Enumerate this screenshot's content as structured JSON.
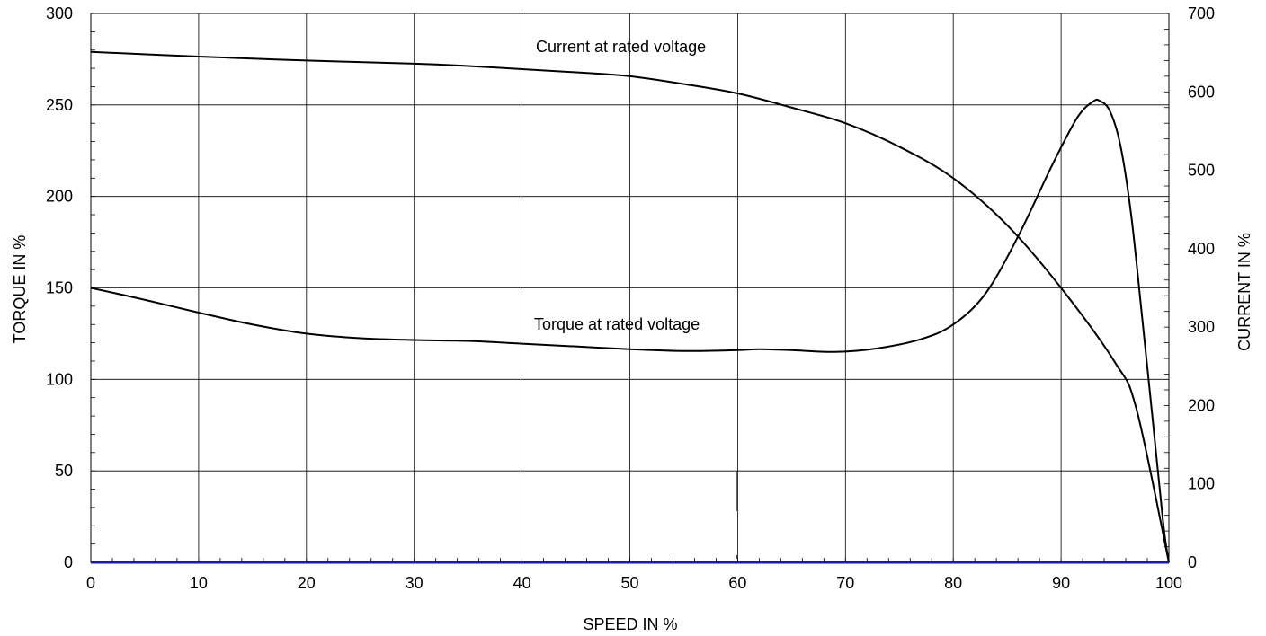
{
  "chart_data": {
    "type": "line",
    "xlabel": "SPEED IN %",
    "ylabel": "TORQUE IN %",
    "y2label": "CURRENT IN %",
    "xlim": [
      0,
      100
    ],
    "ylim": [
      0,
      300
    ],
    "y2lim": [
      0,
      700
    ],
    "xticks": [
      "0",
      "10",
      "20",
      "30",
      "40",
      "50",
      "60",
      "70",
      "80",
      "90",
      "100"
    ],
    "yticks": [
      "0",
      "50",
      "100",
      "150",
      "200",
      "250",
      "300"
    ],
    "y2ticks": [
      "0",
      "100",
      "200",
      "300",
      "400",
      "500",
      "600",
      "700"
    ],
    "grid": true,
    "baseline_color": "#1a1aaa",
    "line_color": "#000000",
    "series": [
      {
        "name": "Current at rated voltage",
        "axis": "right",
        "x": [
          0,
          10,
          20,
          30,
          35,
          40,
          45,
          50,
          55,
          60,
          65,
          70,
          75,
          80,
          85,
          90,
          95,
          97,
          100
        ],
        "y": [
          651,
          645,
          640,
          636,
          633,
          629,
          625,
          620,
          610,
          598,
          580,
          560,
          530,
          490,
          430,
          350,
          255,
          195,
          0
        ]
      },
      {
        "name": "Torque at rated voltage",
        "axis": "left",
        "x": [
          0,
          5,
          10,
          15,
          20,
          25,
          30,
          35,
          40,
          45,
          50,
          55,
          60,
          62,
          65,
          69,
          73,
          77,
          80,
          83,
          86,
          89,
          91,
          92,
          93,
          93.5,
          94.5,
          95.5,
          96.5,
          97.5,
          98.5,
          99.5,
          100
        ],
        "y": [
          150,
          143.5,
          136.5,
          130,
          125,
          122.5,
          121.5,
          121,
          119.5,
          118,
          116.5,
          115.5,
          116,
          116.5,
          116,
          115,
          117,
          122,
          130,
          147,
          178,
          215,
          238,
          247,
          252,
          252.5,
          247,
          228,
          190,
          135,
          78,
          20,
          0
        ]
      }
    ],
    "annotations": [
      "Current at rated voltage",
      "Torque at rated voltage"
    ]
  }
}
